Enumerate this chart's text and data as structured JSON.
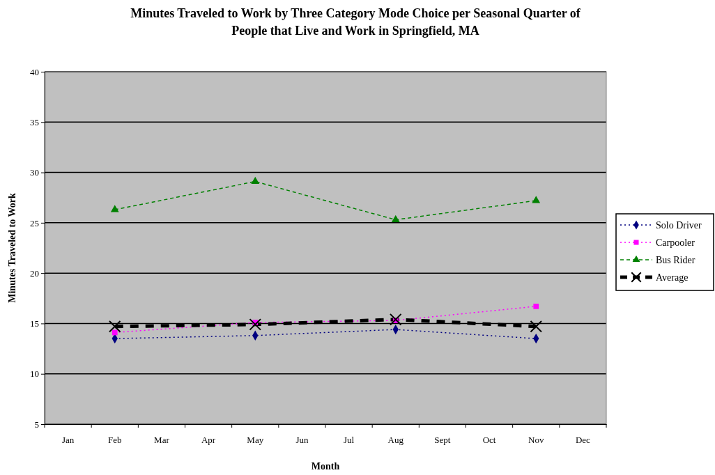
{
  "chart_data": {
    "type": "line",
    "title": "Minutes Traveled to Work by Three Category Mode Choice per Seasonal Quarter of People that Live and Work in Springfield, MA",
    "xlabel": "Month",
    "ylabel": "Minutes Traveled to Work",
    "categories": [
      "Jan",
      "Feb",
      "Mar",
      "Apr",
      "May",
      "Jun",
      "Jul",
      "Aug",
      "Sept",
      "Oct",
      "Nov",
      "Dec"
    ],
    "ylim": [
      5,
      40
    ],
    "yticks": [
      5,
      10,
      15,
      20,
      25,
      30,
      35,
      40
    ],
    "grid": "y",
    "legend": "right",
    "series": [
      {
        "name": "Solo Driver",
        "color": "#000080",
        "marker": "diamond",
        "line_style": "dotted",
        "values": [
          null,
          13.5,
          null,
          null,
          13.8,
          null,
          null,
          14.4,
          null,
          null,
          13.5,
          null
        ]
      },
      {
        "name": "Carpooler",
        "color": "#ff00ff",
        "marker": "square",
        "line_style": "dotted",
        "values": [
          null,
          14.1,
          null,
          null,
          15.1,
          null,
          null,
          15.3,
          null,
          null,
          16.7,
          null
        ]
      },
      {
        "name": "Bus Rider",
        "color": "#008000",
        "marker": "triangle",
        "line_style": "dashed",
        "values": [
          null,
          26.3,
          null,
          null,
          29.1,
          null,
          null,
          25.3,
          null,
          null,
          27.2,
          null
        ]
      },
      {
        "name": "Average",
        "color": "#000000",
        "marker": "cross",
        "line_style": "dashed",
        "values": [
          null,
          14.7,
          null,
          null,
          14.9,
          null,
          null,
          15.4,
          null,
          null,
          14.7,
          null
        ]
      }
    ]
  }
}
